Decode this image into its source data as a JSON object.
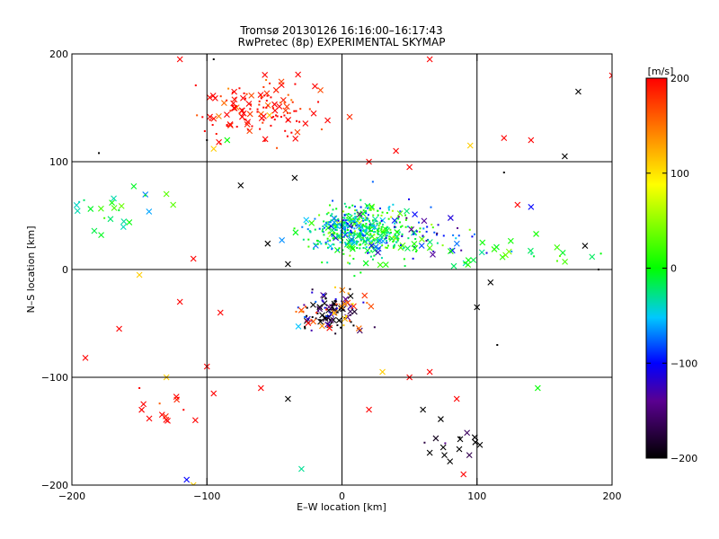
{
  "chart_data": {
    "type": "scatter",
    "title": "Tromsø 20130126  16:16:00–16:17:43",
    "subtitle": "RwPretec (8p) EXPERIMENTAL SKYMAP",
    "xlabel": "E–W location [km]",
    "ylabel": "N–S location [km]",
    "xlim": [
      -200,
      200
    ],
    "ylim": [
      -200,
      200
    ],
    "x_ticks": [
      -200,
      -100,
      0,
      100,
      200
    ],
    "y_ticks": [
      -200,
      -100,
      0,
      100,
      200
    ],
    "x_tick_labels": [
      "−200",
      "−100",
      "0",
      "100",
      "200"
    ],
    "y_tick_labels": [
      "−200",
      "−100",
      "0",
      "100",
      "200"
    ],
    "grid": true,
    "marker_types": [
      "x",
      "dot"
    ],
    "colorbar": {
      "label": "[m/s]",
      "range": [
        -200,
        200
      ],
      "ticks": [
        200,
        100,
        0,
        -100,
        -200
      ],
      "tick_labels": [
        "200",
        "100",
        "0",
        "−100",
        "−200"
      ],
      "colormap": [
        "#000000",
        "#5a0090",
        "#0000ff",
        "#00c8ff",
        "#00ff00",
        "#ffff00",
        "#ff8000",
        "#ff0000"
      ],
      "placement": "right"
    },
    "clusters": [
      {
        "cx": -60,
        "cy": 148,
        "rx": 40,
        "ry": 25,
        "velocity": 200,
        "n_x": 55,
        "n_dot": 80
      },
      {
        "cx": 15,
        "cy": 35,
        "rx": 35,
        "ry": 22,
        "velocity": 0,
        "n_x": 60,
        "n_dot": 260
      },
      {
        "cx": 10,
        "cy": 38,
        "rx": 28,
        "ry": 18,
        "velocity": -50,
        "n_x": 30,
        "n_dot": 150
      },
      {
        "cx": 60,
        "cy": 35,
        "rx": 40,
        "ry": 20,
        "velocity": -100,
        "n_x": 10,
        "n_dot": 40
      },
      {
        "cx": -5,
        "cy": -40,
        "rx": 20,
        "ry": 18,
        "velocity": -200,
        "n_x": 25,
        "n_dot": 45
      },
      {
        "cx": -10,
        "cy": -35,
        "rx": 22,
        "ry": 20,
        "velocity": -100,
        "n_x": 10,
        "n_dot": 15
      },
      {
        "cx": -5,
        "cy": -35,
        "rx": 25,
        "ry": 20,
        "velocity": 150,
        "n_x": 15,
        "n_dot": 15
      },
      {
        "cx": -170,
        "cy": 50,
        "rx": 30,
        "ry": 25,
        "velocity": -10,
        "n_x": 18,
        "n_dot": 5
      },
      {
        "cx": 130,
        "cy": 15,
        "rx": 60,
        "ry": 15,
        "velocity": 5,
        "n_x": 22,
        "n_dot": 10
      },
      {
        "cx": -135,
        "cy": -130,
        "rx": 20,
        "ry": 15,
        "velocity": 200,
        "n_x": 10,
        "n_dot": 3
      },
      {
        "cx": 85,
        "cy": -160,
        "rx": 25,
        "ry": 25,
        "velocity": -200,
        "n_x": 10,
        "n_dot": 3
      }
    ],
    "scattered": [
      {
        "x": -90,
        "y": -40,
        "v": 200,
        "m": "x"
      },
      {
        "x": -120,
        "y": -30,
        "v": 200,
        "m": "x"
      },
      {
        "x": -100,
        "y": -90,
        "v": 200,
        "m": "x"
      },
      {
        "x": -95,
        "y": -115,
        "v": 200,
        "m": "x"
      },
      {
        "x": -190,
        "y": -82,
        "v": 200,
        "m": "x"
      },
      {
        "x": -165,
        "y": -55,
        "v": 200,
        "m": "x"
      },
      {
        "x": -110,
        "y": 10,
        "v": 200,
        "m": "x"
      },
      {
        "x": -60,
        "y": -110,
        "v": 200,
        "m": "x"
      },
      {
        "x": -40,
        "y": -120,
        "v": -200,
        "m": "x"
      },
      {
        "x": -40,
        "y": 5,
        "v": -200,
        "m": "x"
      },
      {
        "x": -75,
        "y": 78,
        "v": -200,
        "m": "x"
      },
      {
        "x": -55,
        "y": 24,
        "v": -200,
        "m": "x"
      },
      {
        "x": -35,
        "y": 85,
        "v": -200,
        "m": "x"
      },
      {
        "x": 140,
        "y": 58,
        "v": -100,
        "m": "x"
      },
      {
        "x": 60,
        "y": -130,
        "v": -200,
        "m": "x"
      },
      {
        "x": 65,
        "y": -170,
        "v": -200,
        "m": "x"
      },
      {
        "x": 75,
        "y": -165,
        "v": -200,
        "m": "x"
      },
      {
        "x": 80,
        "y": -178,
        "v": -200,
        "m": "x"
      },
      {
        "x": 100,
        "y": -35,
        "v": -200,
        "m": "x"
      },
      {
        "x": 115,
        "y": -70,
        "v": -200,
        "m": "dot"
      },
      {
        "x": 110,
        "y": -12,
        "v": -200,
        "m": "x"
      },
      {
        "x": 165,
        "y": 105,
        "v": -200,
        "m": "x"
      },
      {
        "x": 175,
        "y": 165,
        "v": -200,
        "m": "x"
      },
      {
        "x": 180,
        "y": 22,
        "v": -200,
        "m": "x"
      },
      {
        "x": 95,
        "y": 115,
        "v": 110,
        "m": "x"
      },
      {
        "x": 120,
        "y": 122,
        "v": 200,
        "m": "x"
      },
      {
        "x": 140,
        "y": 120,
        "v": 200,
        "m": "x"
      },
      {
        "x": 130,
        "y": 60,
        "v": 200,
        "m": "x"
      },
      {
        "x": 145,
        "y": -110,
        "v": 0,
        "m": "x"
      },
      {
        "x": 85,
        "y": -120,
        "v": 200,
        "m": "x"
      },
      {
        "x": 90,
        "y": -190,
        "v": 200,
        "m": "x"
      },
      {
        "x": -115,
        "y": -195,
        "v": -100,
        "m": "x"
      },
      {
        "x": -110,
        "y": -200,
        "v": 110,
        "m": "x"
      },
      {
        "x": -30,
        "y": -185,
        "v": -30,
        "m": "x"
      },
      {
        "x": -150,
        "y": -5,
        "v": 110,
        "m": "x"
      },
      {
        "x": -85,
        "y": 120,
        "v": 0,
        "m": "x"
      },
      {
        "x": -125,
        "y": 60,
        "v": 30,
        "m": "x"
      },
      {
        "x": -130,
        "y": 70,
        "v": 30,
        "m": "x"
      },
      {
        "x": 65,
        "y": 20,
        "v": 30,
        "m": "x"
      },
      {
        "x": 200,
        "y": 180,
        "v": 200,
        "m": "x"
      },
      {
        "x": 190,
        "y": 0,
        "v": -200,
        "m": "dot"
      },
      {
        "x": 120,
        "y": 90,
        "v": -200,
        "m": "dot"
      },
      {
        "x": -120,
        "y": 195,
        "v": 200,
        "m": "x"
      },
      {
        "x": -95,
        "y": 195,
        "v": -200,
        "m": "dot"
      },
      {
        "x": 65,
        "y": 195,
        "v": 200,
        "m": "x"
      },
      {
        "x": -20,
        "y": 170,
        "v": 200,
        "m": "x"
      },
      {
        "x": -15,
        "y": 130,
        "v": 160,
        "m": "dot"
      },
      {
        "x": 40,
        "y": 110,
        "v": 200,
        "m": "x"
      },
      {
        "x": 50,
        "y": 95,
        "v": 200,
        "m": "x"
      },
      {
        "x": 20,
        "y": 100,
        "v": 200,
        "m": "x"
      },
      {
        "x": -95,
        "y": 112,
        "v": 110,
        "m": "x"
      },
      {
        "x": -180,
        "y": 108,
        "v": -200,
        "m": "dot"
      },
      {
        "x": -100,
        "y": 120,
        "v": -200,
        "m": "dot"
      },
      {
        "x": 50,
        "y": -100,
        "v": 200,
        "m": "x"
      },
      {
        "x": 30,
        "y": -95,
        "v": 110,
        "m": "x"
      },
      {
        "x": 20,
        "y": -130,
        "v": 200,
        "m": "x"
      },
      {
        "x": 65,
        "y": -95,
        "v": 200,
        "m": "x"
      },
      {
        "x": -130,
        "y": -100,
        "v": 110,
        "m": "x"
      },
      {
        "x": -150,
        "y": -110,
        "v": 200,
        "m": "dot"
      }
    ]
  }
}
